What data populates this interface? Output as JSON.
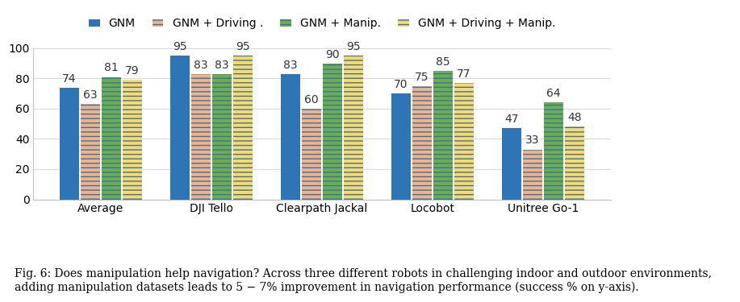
{
  "chart_data": {
    "type": "bar",
    "categories": [
      "Average",
      "DJI Tello",
      "Clearpath Jackal",
      "Locobot",
      "Unitree Go-1"
    ],
    "series": [
      {
        "name": "GNM",
        "color": "#2E75B6",
        "values": [
          74,
          95,
          83,
          70,
          47
        ]
      },
      {
        "name": "GNM + Driving .",
        "color": "#F4B183",
        "values": [
          63,
          83,
          60,
          75,
          33
        ]
      },
      {
        "name": "GNM + Manip.",
        "color": "#70AD47",
        "values": [
          81,
          83,
          90,
          85,
          64
        ]
      },
      {
        "name": "GNM + Driving + Manip.",
        "color": "#FFD966",
        "values": [
          79,
          95,
          95,
          77,
          48
        ]
      }
    ],
    "ylim": [
      0,
      100
    ],
    "yticks": [
      0,
      20,
      40,
      60,
      80,
      100
    ],
    "grid": true,
    "legend": "top",
    "data_labels": true,
    "caption": "Fig. 6: Does manipulation help navigation? Across three different robots in challenging indoor and outdoor environments, adding manipulation datasets leads to 5 − 7% improvement in navigation performance (success % on y-axis)."
  }
}
